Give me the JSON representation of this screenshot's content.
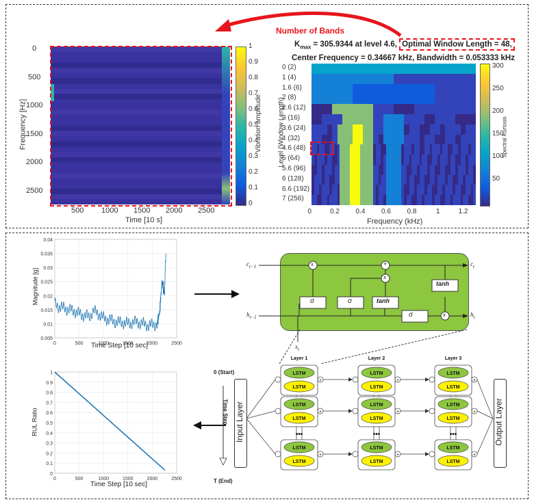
{
  "top": {
    "annotation": "Number of Bands",
    "heatmap1": {
      "ylabel": "Frequency [Hz]",
      "xlabel": "Time [10 s]",
      "yticks": [
        "0",
        "500",
        "1000",
        "1500",
        "2000",
        "2500"
      ],
      "xticks": [
        "500",
        "1000",
        "1500",
        "2000",
        "2500"
      ],
      "colorbar_label": "Vibration amplitude",
      "colorbar_ticks": [
        "1",
        "0.9",
        "0.8",
        "0.7",
        "0.6",
        "0.5",
        "0.4",
        "0.3",
        "0.2",
        "0.1",
        "0"
      ]
    },
    "kurtogram": {
      "title_k": "K",
      "title_sub": "max",
      "title_rest": " = 305.9344 at level 4.6, ",
      "title_opt": "Optimal Window Length = 48,",
      "subtitle": "Center Frequency = 0.34667 kHz, Bandwidth = 0.053333 kHz",
      "ylabel": "Level (Window Length)",
      "xlabel": "Frequency (kHz)",
      "levels": [
        "0  (2)",
        "1  (4)",
        "1.6  (6)",
        "2  (8)",
        "2.6  (12)",
        "3  (16)",
        "3.6  (24)",
        "4  (32)",
        "4.6  (48)",
        "5  (64)",
        "5.6  (96)",
        "6  (128)",
        "6.6  (192)",
        "7  (256)"
      ],
      "xticks": [
        "0",
        "0.2",
        "0.4",
        "0.6",
        "0.8",
        "1",
        "1.2"
      ],
      "colorbar_label": "Spectral Kurtosis",
      "colorbar_ticks": [
        "300",
        "250",
        "200",
        "150",
        "100",
        "50"
      ]
    }
  },
  "bottom": {
    "raw_chart": {
      "ylabel": "Magnitude [g]",
      "xlabel": "Time Step [10 sec]",
      "yticks": [
        "0.04",
        "0.035",
        "0.03",
        "0.025",
        "0.02",
        "0.015",
        "0.01",
        "0.005"
      ],
      "xticks": [
        "0",
        "500",
        "1000",
        "1500",
        "2000",
        "2500"
      ]
    },
    "rul_chart": {
      "ylabel": "RUL Ratio",
      "xlabel": "Time Step [10 sec]",
      "yticks": [
        "1",
        "0.9",
        "0.8",
        "0.7",
        "0.6",
        "0.5",
        "0.4",
        "0.3",
        "0.2",
        "0.1",
        "0"
      ],
      "xticks": [
        "0",
        "500",
        "1000",
        "1500",
        "2000",
        "2500"
      ]
    },
    "cell": {
      "c_prev": "c",
      "c_prev_sub": "t−1",
      "c_next": "c",
      "c_next_sub": "t",
      "h_prev": "h",
      "h_prev_sub": "t−1",
      "h_next": "h",
      "h_next_sub": "t",
      "x_in": "x",
      "x_in_sub": "t",
      "sigma": "σ",
      "tanh": "tanh",
      "mult": "x",
      "plus": "+"
    },
    "network": {
      "start": "0 (Start)",
      "end": "T (End)",
      "time_step": "Time Step",
      "input_layer": "Input Layer",
      "output_layer": "Output Layer",
      "layers": [
        "Layer 1",
        "Layer 2",
        "Layer 3"
      ],
      "lstm": "LSTM",
      "dots": "•••"
    }
  },
  "colors": {
    "accent_red": "#e8141b",
    "cell_green": "#8dc63f",
    "lstm_green": "#8dc63f",
    "lstm_yellow": "#fff200",
    "line_blue": "#1f77b4",
    "parula_low": "#352a87",
    "parula_high": "#f9fb0e"
  },
  "chart_data": [
    {
      "type": "line",
      "xlabel": "Time Step [10 sec]",
      "ylabel": "Magnitude [g]",
      "xlim": [
        0,
        2500
      ],
      "ylim": [
        0.005,
        0.04
      ],
      "x": [
        0,
        100,
        200,
        300,
        400,
        500,
        600,
        700,
        800,
        900,
        1000,
        1100,
        1200,
        1300,
        1400,
        1500,
        1600,
        1700,
        1800,
        1900,
        2000,
        2100,
        2150,
        2200,
        2250,
        2280
      ],
      "values": [
        0.017,
        0.016,
        0.0155,
        0.015,
        0.0145,
        0.0135,
        0.013,
        0.0125,
        0.0145,
        0.0135,
        0.012,
        0.0115,
        0.011,
        0.0105,
        0.0105,
        0.01,
        0.0105,
        0.0105,
        0.01,
        0.0095,
        0.0095,
        0.01,
        0.014,
        0.025,
        0.021,
        0.035
      ]
    },
    {
      "type": "line",
      "xlabel": "Time Step [10 sec]",
      "ylabel": "RUL Ratio",
      "xlim": [
        0,
        2500
      ],
      "ylim": [
        0,
        1
      ],
      "x": [
        0,
        2260
      ],
      "values": [
        1,
        0.03
      ]
    }
  ]
}
